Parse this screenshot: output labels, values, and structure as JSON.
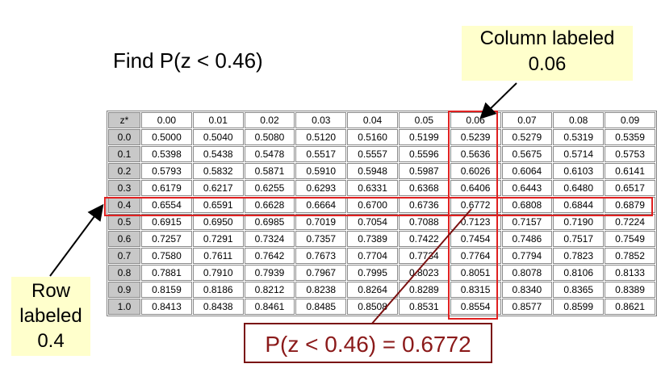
{
  "title": "Find P(z < 0.46)",
  "column_callout": {
    "line1": "Column labeled",
    "line2": "0.06"
  },
  "row_callout": {
    "line1": "Row",
    "line2": "labeled",
    "line3": "0.4"
  },
  "answer": "P(z < 0.46) = 0.6772",
  "colors": {
    "highlight": "#e02020",
    "callout_bg": "#ffffcc",
    "answer_text": "#8b1a1a"
  },
  "table": {
    "corner": "z*",
    "columns": [
      "0.00",
      "0.01",
      "0.02",
      "0.03",
      "0.04",
      "0.05",
      "0.06",
      "0.07",
      "0.08",
      "0.09"
    ],
    "rows": [
      {
        "z": "0.0",
        "values": [
          "0.5000",
          "0.5040",
          "0.5080",
          "0.5120",
          "0.5160",
          "0.5199",
          "0.5239",
          "0.5279",
          "0.5319",
          "0.5359"
        ]
      },
      {
        "z": "0.1",
        "values": [
          "0.5398",
          "0.5438",
          "0.5478",
          "0.5517",
          "0.5557",
          "0.5596",
          "0.5636",
          "0.5675",
          "0.5714",
          "0.5753"
        ]
      },
      {
        "z": "0.2",
        "values": [
          "0.5793",
          "0.5832",
          "0.5871",
          "0.5910",
          "0.5948",
          "0.5987",
          "0.6026",
          "0.6064",
          "0.6103",
          "0.6141"
        ]
      },
      {
        "z": "0.3",
        "values": [
          "0.6179",
          "0.6217",
          "0.6255",
          "0.6293",
          "0.6331",
          "0.6368",
          "0.6406",
          "0.6443",
          "0.6480",
          "0.6517"
        ]
      },
      {
        "z": "0.4",
        "values": [
          "0.6554",
          "0.6591",
          "0.6628",
          "0.6664",
          "0.6700",
          "0.6736",
          "0.6772",
          "0.6808",
          "0.6844",
          "0.6879"
        ]
      },
      {
        "z": "0.5",
        "values": [
          "0.6915",
          "0.6950",
          "0.6985",
          "0.7019",
          "0.7054",
          "0.7088",
          "0.7123",
          "0.7157",
          "0.7190",
          "0.7224"
        ]
      },
      {
        "z": "0.6",
        "values": [
          "0.7257",
          "0.7291",
          "0.7324",
          "0.7357",
          "0.7389",
          "0.7422",
          "0.7454",
          "0.7486",
          "0.7517",
          "0.7549"
        ]
      },
      {
        "z": "0.7",
        "values": [
          "0.7580",
          "0.7611",
          "0.7642",
          "0.7673",
          "0.7704",
          "0.7734",
          "0.7764",
          "0.7794",
          "0.7823",
          "0.7852"
        ]
      },
      {
        "z": "0.8",
        "values": [
          "0.7881",
          "0.7910",
          "0.7939",
          "0.7967",
          "0.7995",
          "0.8023",
          "0.8051",
          "0.8078",
          "0.8106",
          "0.8133"
        ]
      },
      {
        "z": "0.9",
        "values": [
          "0.8159",
          "0.8186",
          "0.8212",
          "0.8238",
          "0.8264",
          "0.8289",
          "0.8315",
          "0.8340",
          "0.8365",
          "0.8389"
        ]
      },
      {
        "z": "1.0",
        "values": [
          "0.8413",
          "0.8438",
          "0.8461",
          "0.8485",
          "0.8508",
          "0.8531",
          "0.8554",
          "0.8577",
          "0.8599",
          "0.8621"
        ]
      }
    ]
  }
}
